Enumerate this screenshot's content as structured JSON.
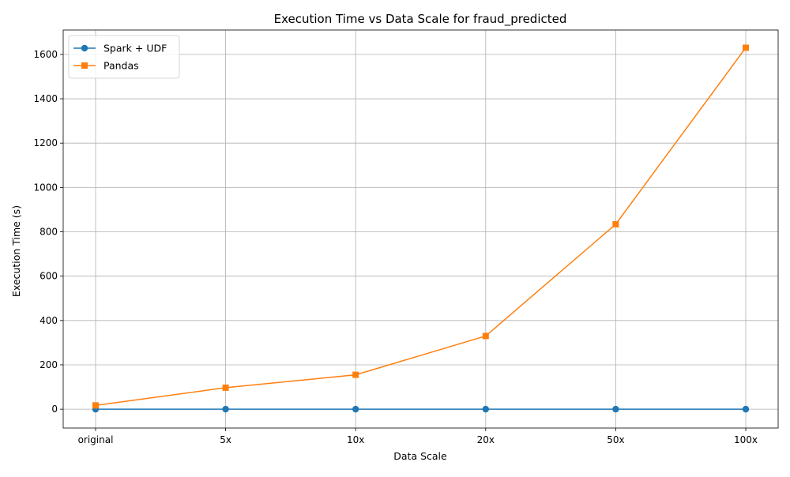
{
  "chart_data": {
    "type": "line",
    "title": "Execution Time vs Data Scale for fraud_predicted",
    "xlabel": "Data Scale",
    "ylabel": "Execution Time (s)",
    "categories": [
      "original",
      "5x",
      "10x",
      "20x",
      "50x",
      "100x"
    ],
    "ylim": [
      -85,
      1710
    ],
    "yticks": [
      0,
      200,
      400,
      600,
      800,
      1000,
      1200,
      1400,
      1600
    ],
    "grid": true,
    "legend_position": "top-left",
    "series": [
      {
        "name": "Spark + UDF",
        "values": [
          0,
          0,
          0,
          0,
          0,
          0
        ],
        "color": "#1f77b4",
        "marker": "circle"
      },
      {
        "name": "Pandas",
        "values": [
          17,
          97,
          155,
          330,
          834,
          1630
        ],
        "color": "#ff7f0e",
        "marker": "square"
      }
    ]
  }
}
